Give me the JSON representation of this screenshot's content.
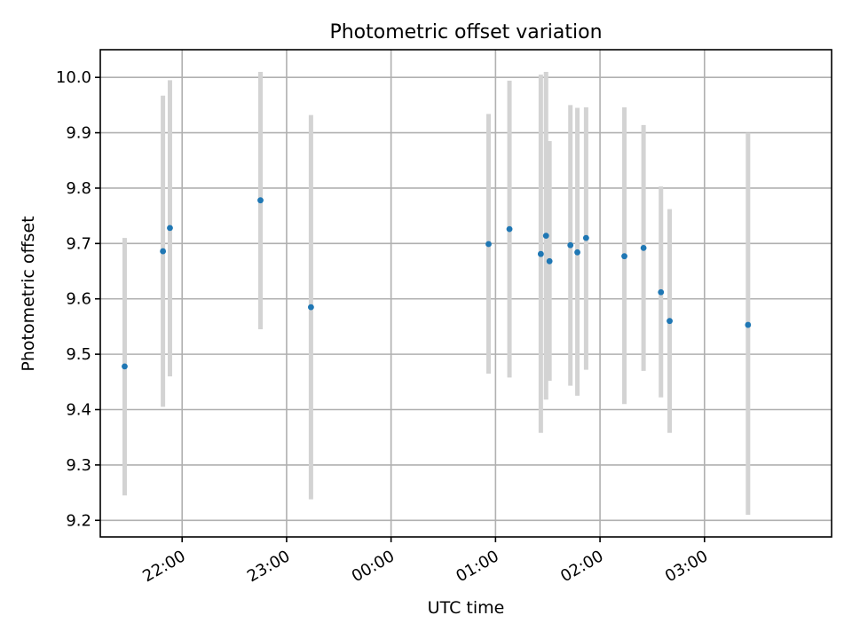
{
  "chart_data": {
    "type": "scatter",
    "title": "Photometric offset variation",
    "xlabel": "UTC time",
    "ylabel": "Photometric offset",
    "x_tick_labels": [
      "22:00",
      "23:00",
      "00:00",
      "01:00",
      "02:00",
      "03:00"
    ],
    "x_ticks": [
      "22:00",
      "23:00",
      "00:00",
      "01:00",
      "02:00",
      "03:00"
    ],
    "xlim": [
      "21:13",
      "04:13"
    ],
    "y_tick_labels": [
      "9.2",
      "9.3",
      "9.4",
      "9.5",
      "9.6",
      "9.7",
      "9.8",
      "9.9",
      "10.0"
    ],
    "yticks": [
      9.2,
      9.3,
      9.4,
      9.5,
      9.6,
      9.7,
      9.8,
      9.9,
      10.0
    ],
    "ylim": [
      9.17,
      10.05
    ],
    "grid": true,
    "point_color": "#1f77b4",
    "errorbar_color": "#d3d3d3",
    "points": [
      {
        "x": "21:27",
        "y": 9.478,
        "ylow": 9.245,
        "yhigh": 9.71
      },
      {
        "x": "21:49",
        "y": 9.686,
        "ylow": 9.405,
        "yhigh": 9.967
      },
      {
        "x": "21:53",
        "y": 9.728,
        "ylow": 9.46,
        "yhigh": 9.995
      },
      {
        "x": "22:45",
        "y": 9.778,
        "ylow": 9.545,
        "yhigh": 10.01
      },
      {
        "x": "23:14",
        "y": 9.585,
        "ylow": 9.238,
        "yhigh": 9.932
      },
      {
        "x": "00:56",
        "y": 9.699,
        "ylow": 9.465,
        "yhigh": 9.934
      },
      {
        "x": "01:08",
        "y": 9.726,
        "ylow": 9.458,
        "yhigh": 9.994
      },
      {
        "x": "01:26",
        "y": 9.681,
        "ylow": 9.358,
        "yhigh": 10.005
      },
      {
        "x": "01:29",
        "y": 9.714,
        "ylow": 9.418,
        "yhigh": 10.01
      },
      {
        "x": "01:31",
        "y": 9.668,
        "ylow": 9.452,
        "yhigh": 9.885
      },
      {
        "x": "01:43",
        "y": 9.697,
        "ylow": 9.443,
        "yhigh": 9.95
      },
      {
        "x": "01:47",
        "y": 9.684,
        "ylow": 9.425,
        "yhigh": 9.945
      },
      {
        "x": "01:52",
        "y": 9.71,
        "ylow": 9.472,
        "yhigh": 9.946
      },
      {
        "x": "02:14",
        "y": 9.677,
        "ylow": 9.41,
        "yhigh": 9.946
      },
      {
        "x": "02:25",
        "y": 9.692,
        "ylow": 9.47,
        "yhigh": 9.914
      },
      {
        "x": "02:35",
        "y": 9.612,
        "ylow": 9.422,
        "yhigh": 9.803
      },
      {
        "x": "02:40",
        "y": 9.56,
        "ylow": 9.358,
        "yhigh": 9.762
      },
      {
        "x": "03:25",
        "y": 9.553,
        "ylow": 9.21,
        "yhigh": 9.9
      }
    ]
  }
}
